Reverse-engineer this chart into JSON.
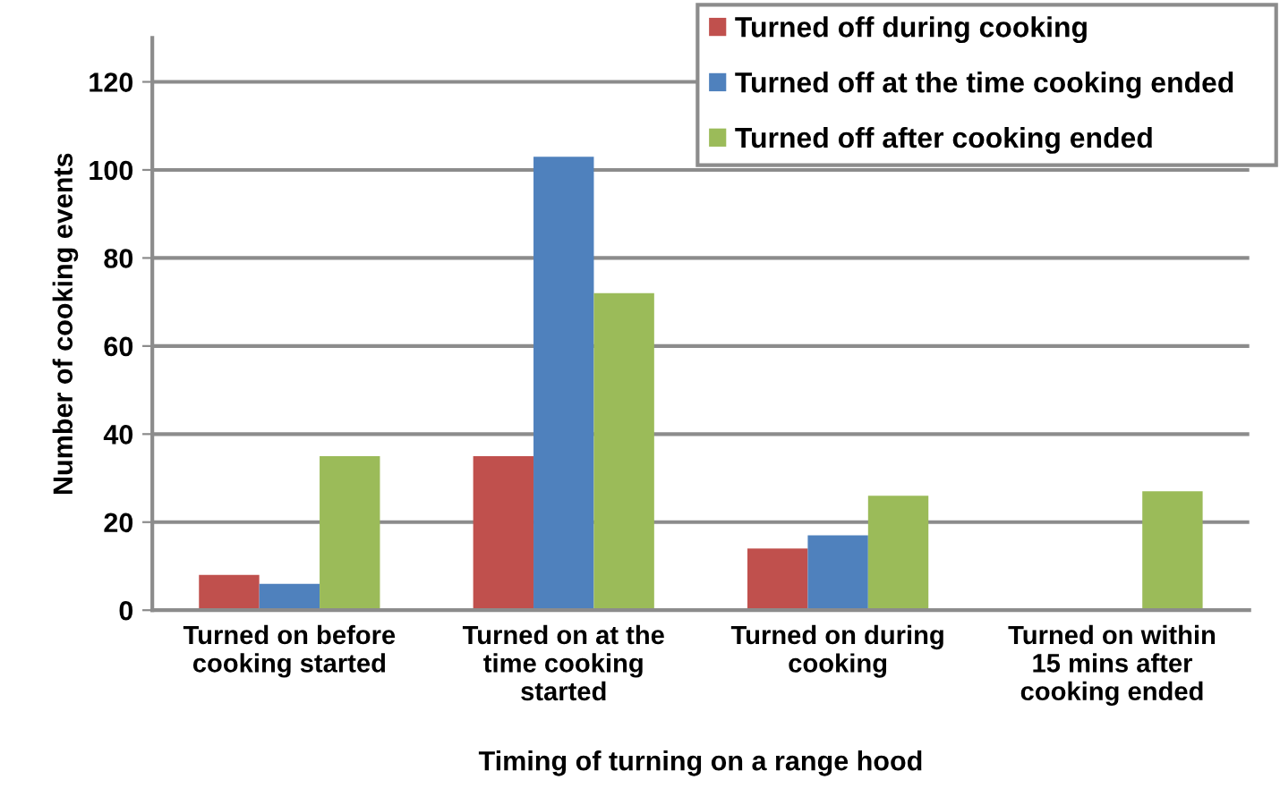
{
  "chart_data": {
    "type": "bar",
    "categories": [
      "Turned on before\ncooking started",
      "Turned on at the\ntime cooking\nstarted",
      "Turned on during\ncooking",
      "Turned on within\n15 mins after\ncooking ended"
    ],
    "series": [
      {
        "name": "Turned off during cooking",
        "color": "#c0504d",
        "values": [
          8,
          35,
          14,
          0
        ]
      },
      {
        "name": "Turned off at the time cooking ended",
        "color": "#4f81bd",
        "values": [
          6,
          103,
          17,
          0
        ]
      },
      {
        "name": "Turned off after cooking ended",
        "color": "#9bbb59",
        "values": [
          35,
          72,
          26,
          27
        ]
      }
    ],
    "xlabel": "Timing of turning on a range hood",
    "ylabel": "Number of cooking events",
    "ylim": [
      0,
      130
    ],
    "yticks": [
      0,
      20,
      40,
      60,
      80,
      100,
      120
    ],
    "grid": "y",
    "legend": "top right"
  }
}
